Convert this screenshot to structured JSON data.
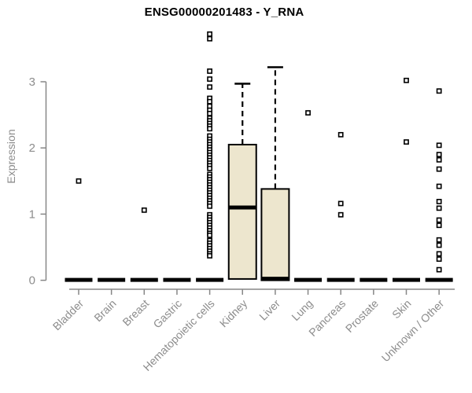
{
  "chart_data": {
    "type": "boxplot",
    "title": "ENSG00000201483 - Y_RNA",
    "ylabel": "Expression",
    "xlabel": "",
    "ylim": [
      0,
      3
    ],
    "yticks": [
      0,
      1,
      2,
      3
    ],
    "grid": false,
    "legend": false,
    "colors": {
      "box_fill": "#EDE6CE",
      "box_stroke": "#000000",
      "axis_line": "#878787",
      "axis_text": "#8c8c8c",
      "title_text": "#000000",
      "outlier_fill": "#ffffff"
    },
    "categories": [
      "Bladder",
      "Brain",
      "Breast",
      "Gastric",
      "Hematopoietic cells",
      "Kidney",
      "Liver",
      "Lung",
      "Pancreas",
      "Prostate",
      "Skin",
      "Unknown / Other"
    ],
    "boxes": [
      {
        "q1": 0,
        "median": 0,
        "q3": 0,
        "whisker_low": 0,
        "whisker_high": 0,
        "outliers": [
          1.5
        ]
      },
      {
        "q1": 0,
        "median": 0,
        "q3": 0,
        "whisker_low": 0,
        "whisker_high": 0,
        "outliers": []
      },
      {
        "q1": 0,
        "median": 0,
        "q3": 0,
        "whisker_low": 0,
        "whisker_high": 0,
        "outliers": [
          1.06
        ]
      },
      {
        "q1": 0,
        "median": 0,
        "q3": 0,
        "whisker_low": 0,
        "whisker_high": 0,
        "outliers": []
      },
      {
        "q1": 0,
        "median": 0,
        "q3": 0,
        "whisker_low": 0,
        "whisker_high": 0,
        "outliers": [
          3.72,
          3.65,
          3.16,
          3.04,
          2.92,
          2.75,
          2.7,
          2.63,
          2.57,
          2.52,
          2.45,
          2.41,
          2.37,
          2.33,
          2.29,
          2.18,
          2.13,
          2.09,
          2.05,
          2.01,
          1.97,
          1.93,
          1.89,
          1.85,
          1.81,
          1.77,
          1.73,
          1.69,
          1.6,
          1.56,
          1.52,
          1.48,
          1.44,
          1.4,
          1.36,
          1.32,
          1.28,
          1.24,
          1.2,
          1.16,
          1.12,
          0.99,
          0.95,
          0.91,
          0.87,
          0.83,
          0.79,
          0.75,
          0.71,
          0.68,
          0.6,
          0.56,
          0.52,
          0.48,
          0.44,
          0.4,
          0.37
        ]
      },
      {
        "q1": 0.02,
        "median": 1.1,
        "q3": 2.05,
        "whisker_low": 0.02,
        "whisker_high": 2.97,
        "outliers": []
      },
      {
        "q1": 0,
        "median": 0,
        "q3": 1.38,
        "whisker_low": 0,
        "whisker_high": 3.22,
        "outliers": []
      },
      {
        "q1": 0,
        "median": 0,
        "q3": 0,
        "whisker_low": 0,
        "whisker_high": 0,
        "outliers": [
          2.53
        ]
      },
      {
        "q1": 0,
        "median": 0,
        "q3": 0,
        "whisker_low": 0,
        "whisker_high": 0,
        "outliers": [
          2.2,
          1.16,
          0.99
        ]
      },
      {
        "q1": 0,
        "median": 0,
        "q3": 0,
        "whisker_low": 0,
        "whisker_high": 0,
        "outliers": []
      },
      {
        "q1": 0,
        "median": 0,
        "q3": 0,
        "whisker_low": 0,
        "whisker_high": 0,
        "outliers": [
          3.02,
          2.09
        ]
      },
      {
        "q1": 0,
        "median": 0,
        "q3": 0,
        "whisker_low": 0,
        "whisker_high": 0,
        "outliers": [
          2.86,
          2.04,
          1.9,
          1.82,
          1.68,
          1.42,
          1.19,
          1.09,
          0.91,
          0.83,
          0.61,
          0.53,
          0.4,
          0.32,
          0.16
        ]
      }
    ]
  }
}
